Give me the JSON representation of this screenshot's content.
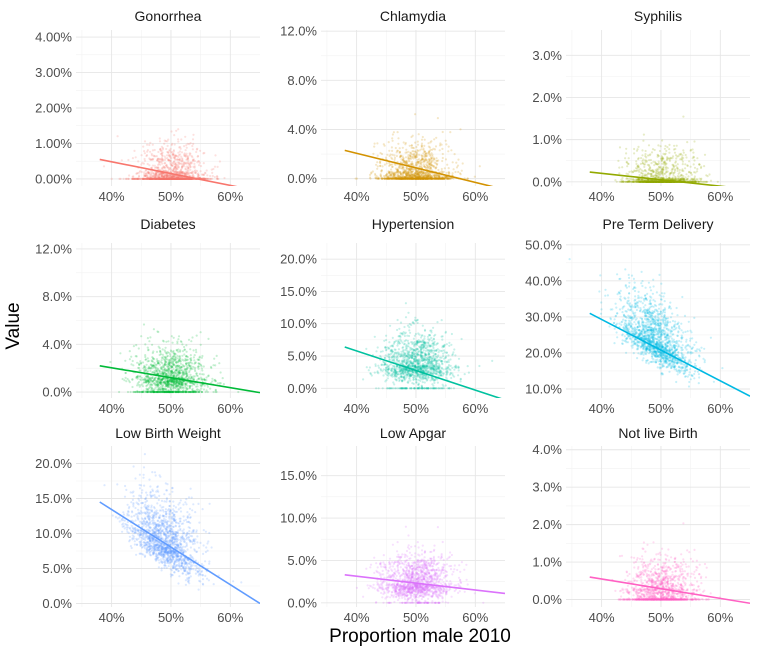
{
  "xlabel": "Proportion male 2010",
  "ylabel": "Value",
  "chart_data": [
    {
      "type": "scatter",
      "title": "Gonorrhea",
      "color": "#F8766D",
      "xlim": [
        0.34,
        0.65
      ],
      "ylim": [
        -0.002,
        0.042
      ],
      "xticks": [
        0.4,
        0.5,
        0.6
      ],
      "yticks": [
        0.0,
        0.01,
        0.02,
        0.03,
        0.04
      ],
      "ytick_decimals": 2,
      "cloud": {
        "center": [
          0.5,
          0.002
        ],
        "sd": [
          0.03,
          0.003
        ],
        "floor": 0.0,
        "floor_share": 0.45,
        "count": 1400
      },
      "trend": {
        "x": [
          0.38,
          0.65
        ],
        "y": [
          0.0055,
          -0.0035
        ]
      }
    },
    {
      "type": "scatter",
      "title": "Chlamydia",
      "color": "#D39200",
      "xlim": [
        0.34,
        0.65
      ],
      "ylim": [
        -0.006,
        0.121
      ],
      "xticks": [
        0.4,
        0.5,
        0.6
      ],
      "yticks": [
        0.0,
        0.04,
        0.08,
        0.12
      ],
      "ytick_decimals": 1,
      "cloud": {
        "center": [
          0.5,
          0.006
        ],
        "sd": [
          0.03,
          0.009
        ],
        "floor": 0.0,
        "floor_share": 0.35,
        "count": 1400
      },
      "trend": {
        "x": [
          0.38,
          0.65
        ],
        "y": [
          0.023,
          -0.009
        ]
      }
    },
    {
      "type": "scatter",
      "title": "Syphilis",
      "color": "#93AA00",
      "xlim": [
        0.34,
        0.65
      ],
      "ylim": [
        -0.001,
        0.036
      ],
      "xticks": [
        0.4,
        0.5,
        0.6
      ],
      "yticks": [
        0.0,
        0.01,
        0.02,
        0.03
      ],
      "ytick_decimals": 1,
      "cloud": {
        "center": [
          0.5,
          0.001
        ],
        "sd": [
          0.03,
          0.0025
        ],
        "floor": 0.0,
        "floor_share": 0.5,
        "count": 1300
      },
      "trend": {
        "x": [
          0.38,
          0.65
        ],
        "y": [
          0.0023,
          -0.0018
        ]
      }
    },
    {
      "type": "scatter",
      "title": "Diabetes",
      "color": "#00BA38",
      "xlim": [
        0.34,
        0.65
      ],
      "ylim": [
        -0.005,
        0.125
      ],
      "xticks": [
        0.4,
        0.5,
        0.6
      ],
      "yticks": [
        0.0,
        0.04,
        0.08,
        0.12
      ],
      "ytick_decimals": 1,
      "cloud": {
        "center": [
          0.5,
          0.012
        ],
        "sd": [
          0.03,
          0.01
        ],
        "floor": 0.0,
        "floor_share": 0.15,
        "count": 1400
      },
      "trend": {
        "x": [
          0.38,
          0.65
        ],
        "y": [
          0.022,
          -0.0005
        ]
      }
    },
    {
      "type": "scatter",
      "title": "Hypertension",
      "color": "#00C19F",
      "xlim": [
        0.34,
        0.65
      ],
      "ylim": [
        -0.015,
        0.225
      ],
      "xticks": [
        0.4,
        0.5,
        0.6
      ],
      "yticks": [
        0.0,
        0.05,
        0.1,
        0.15,
        0.2
      ],
      "ytick_decimals": 1,
      "cloud": {
        "center": [
          0.5,
          0.035
        ],
        "sd": [
          0.03,
          0.02
        ],
        "floor": 0.0,
        "floor_share": 0.08,
        "count": 1400
      },
      "trend": {
        "x": [
          0.38,
          0.65
        ],
        "y": [
          0.064,
          -0.018
        ]
      }
    },
    {
      "type": "scatter",
      "title": "Pre Term Delivery",
      "color": "#00B9E3",
      "xlim": [
        0.34,
        0.65
      ],
      "ylim": [
        0.075,
        0.505
      ],
      "xticks": [
        0.4,
        0.5,
        0.6
      ],
      "yticks": [
        0.1,
        0.2,
        0.3,
        0.4,
        0.5
      ],
      "ytick_decimals": 1,
      "cloud": {
        "center": [
          0.49,
          0.23
        ],
        "sd": [
          0.03,
          0.045
        ],
        "slope": -0.9,
        "floor": 0.08,
        "floor_share": 0.0,
        "count": 1600
      },
      "trend": {
        "x": [
          0.38,
          0.65
        ],
        "y": [
          0.31,
          0.08
        ]
      }
    },
    {
      "type": "scatter",
      "title": "Low Birth Weight",
      "color": "#619CFF",
      "xlim": [
        0.34,
        0.65
      ],
      "ylim": [
        -0.005,
        0.225
      ],
      "xticks": [
        0.4,
        0.5,
        0.6
      ],
      "yticks": [
        0.0,
        0.05,
        0.1,
        0.15,
        0.2
      ],
      "ytick_decimals": 1,
      "cloud": {
        "center": [
          0.49,
          0.085
        ],
        "sd": [
          0.03,
          0.025
        ],
        "slope": -0.5,
        "floor": 0.0,
        "floor_share": 0.0,
        "count": 1600
      },
      "trend": {
        "x": [
          0.38,
          0.65
        ],
        "y": [
          0.145,
          0.0
        ]
      }
    },
    {
      "type": "scatter",
      "title": "Low Apgar",
      "color": "#DB72FB",
      "xlim": [
        0.34,
        0.65
      ],
      "ylim": [
        -0.005,
        0.185
      ],
      "xticks": [
        0.4,
        0.5,
        0.6
      ],
      "yticks": [
        0.0,
        0.05,
        0.1,
        0.15
      ],
      "ytick_decimals": 1,
      "cloud": {
        "center": [
          0.5,
          0.022
        ],
        "sd": [
          0.03,
          0.014
        ],
        "floor": 0.0,
        "floor_share": 0.05,
        "count": 1400
      },
      "trend": {
        "x": [
          0.38,
          0.65
        ],
        "y": [
          0.033,
          0.011
        ]
      }
    },
    {
      "type": "scatter",
      "title": "Not live Birth",
      "color": "#FF61C3",
      "xlim": [
        0.34,
        0.65
      ],
      "ylim": [
        -0.002,
        0.041
      ],
      "xticks": [
        0.4,
        0.5,
        0.6
      ],
      "yticks": [
        0.0,
        0.01,
        0.02,
        0.03,
        0.04
      ],
      "ytick_decimals": 1,
      "cloud": {
        "center": [
          0.5,
          0.003
        ],
        "sd": [
          0.03,
          0.003
        ],
        "floor": 0.0,
        "floor_share": 0.4,
        "count": 1400
      },
      "trend": {
        "x": [
          0.38,
          0.65
        ],
        "y": [
          0.006,
          -0.001
        ]
      }
    }
  ]
}
